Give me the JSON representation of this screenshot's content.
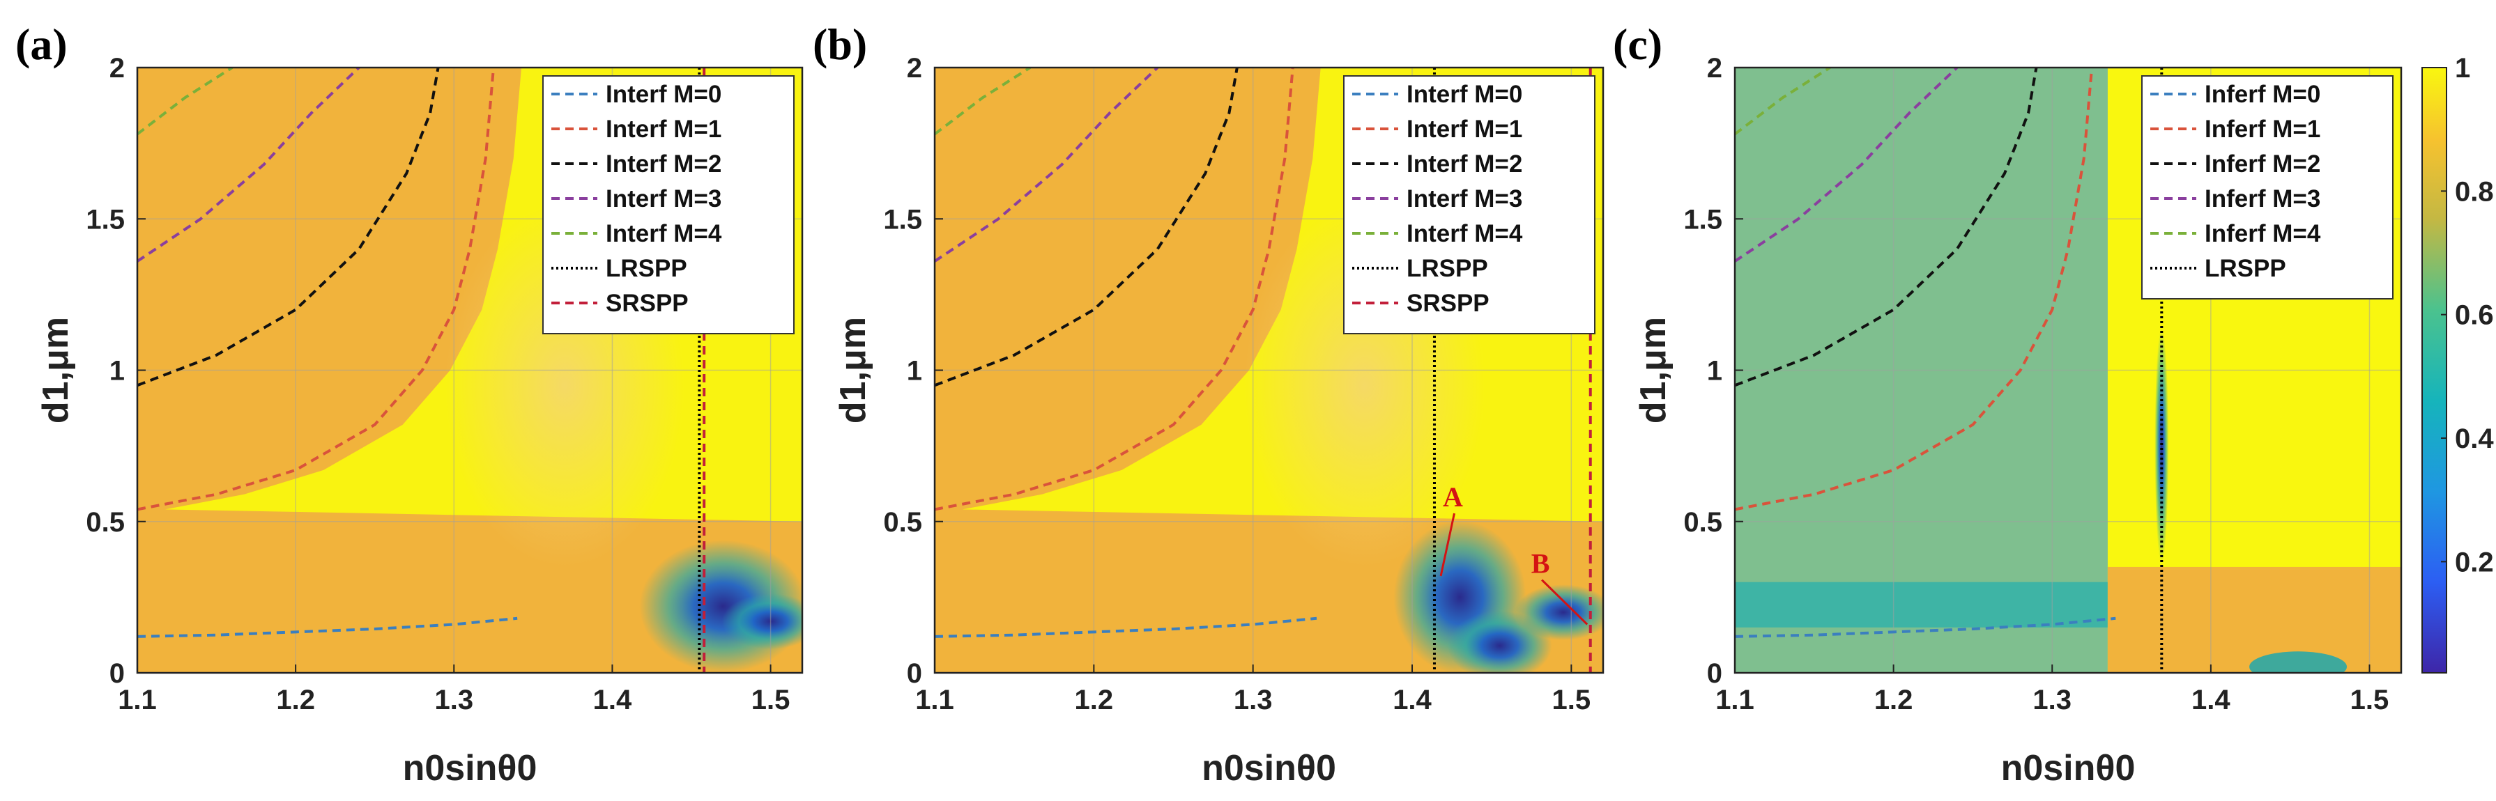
{
  "chart_data": [
    {
      "type": "heatmap",
      "panel_label": "(a)",
      "xlabel": "n0sinθ0",
      "ylabel": "d1,μm",
      "xlim": [
        1.1,
        1.52
      ],
      "ylim": [
        0,
        2
      ],
      "xticks": [
        "1.1",
        "1.2",
        "1.3",
        "1.4",
        "1.5"
      ],
      "yticks": [
        "0",
        "0.5",
        "1",
        "1.5",
        "2"
      ],
      "grid": true,
      "legend_position": "top-right",
      "legend": [
        "Interf M=0",
        "Interf M=1",
        "Interf M=2",
        "Interf M=3",
        "Interf M=4",
        "LRSPP",
        "SRSPP"
      ],
      "lrspp_x": 1.455,
      "srspp_x": 1.458,
      "series": [
        {
          "name": "Interf M=0",
          "color": "#3b7fbf",
          "x": [
            1.1,
            1.15,
            1.2,
            1.25,
            1.3,
            1.34
          ],
          "y": [
            0.12,
            0.125,
            0.135,
            0.145,
            0.16,
            0.18
          ]
        },
        {
          "name": "Interf M=1",
          "color": "#d9533b",
          "x": [
            1.1,
            1.15,
            1.2,
            1.25,
            1.28,
            1.3,
            1.31,
            1.32,
            1.325
          ],
          "y": [
            0.54,
            0.59,
            0.67,
            0.82,
            1.0,
            1.2,
            1.4,
            1.7,
            2.0
          ]
        },
        {
          "name": "Interf M=2",
          "color": "#111111",
          "x": [
            1.1,
            1.15,
            1.2,
            1.24,
            1.27,
            1.285,
            1.29
          ],
          "y": [
            0.95,
            1.05,
            1.2,
            1.4,
            1.65,
            1.85,
            2.0
          ]
        },
        {
          "name": "Interf M=3",
          "color": "#8a3f9e",
          "x": [
            1.1,
            1.14,
            1.18,
            1.21,
            1.24
          ],
          "y": [
            1.36,
            1.5,
            1.68,
            1.85,
            2.0
          ]
        },
        {
          "name": "Interf M=4",
          "color": "#7ab03a",
          "x": [
            1.1,
            1.13,
            1.16
          ],
          "y": [
            1.78,
            1.9,
            2.0
          ]
        }
      ]
    },
    {
      "type": "heatmap",
      "panel_label": "(b)",
      "xlabel": "n0sinθ0",
      "ylabel": "d1,μm",
      "xlim": [
        1.1,
        1.52
      ],
      "ylim": [
        0,
        2
      ],
      "xticks": [
        "1.1",
        "1.2",
        "1.3",
        "1.4",
        "1.5"
      ],
      "yticks": [
        "0",
        "0.5",
        "1",
        "1.5",
        "2"
      ],
      "grid": true,
      "legend_position": "top-right",
      "legend": [
        "Interf M=0",
        "Interf M=1",
        "Interf M=2",
        "Interf M=3",
        "Interf M=4",
        "LRSPP",
        "SRSPP"
      ],
      "lrspp_x": 1.414,
      "srspp_x": 1.512,
      "annotations": [
        {
          "text": "A",
          "x": 1.43,
          "y": 0.55,
          "to_x": 1.418,
          "to_y": 0.32
        },
        {
          "text": "B",
          "x": 1.485,
          "y": 0.33,
          "to_x": 1.51,
          "to_y": 0.16
        }
      ],
      "series": [
        {
          "name": "Interf M=0",
          "color": "#3b7fbf",
          "x": [
            1.1,
            1.15,
            1.2,
            1.25,
            1.3,
            1.34
          ],
          "y": [
            0.12,
            0.125,
            0.135,
            0.145,
            0.16,
            0.18
          ]
        },
        {
          "name": "Interf M=1",
          "color": "#d9533b",
          "x": [
            1.1,
            1.15,
            1.2,
            1.25,
            1.28,
            1.3,
            1.31,
            1.32,
            1.325
          ],
          "y": [
            0.54,
            0.59,
            0.67,
            0.82,
            1.0,
            1.2,
            1.4,
            1.7,
            2.0
          ]
        },
        {
          "name": "Interf M=2",
          "color": "#111111",
          "x": [
            1.1,
            1.15,
            1.2,
            1.24,
            1.27,
            1.285,
            1.29
          ],
          "y": [
            0.95,
            1.05,
            1.2,
            1.4,
            1.65,
            1.85,
            2.0
          ]
        },
        {
          "name": "Interf M=3",
          "color": "#8a3f9e",
          "x": [
            1.1,
            1.14,
            1.18,
            1.21,
            1.24
          ],
          "y": [
            1.36,
            1.5,
            1.68,
            1.85,
            2.0
          ]
        },
        {
          "name": "Interf M=4",
          "color": "#7ab03a",
          "x": [
            1.1,
            1.13,
            1.16
          ],
          "y": [
            1.78,
            1.9,
            2.0
          ]
        }
      ]
    },
    {
      "type": "heatmap",
      "panel_label": "(c)",
      "xlabel": "n0sinθ0",
      "ylabel": "d1,μm",
      "xlim": [
        1.1,
        1.52
      ],
      "ylim": [
        0,
        2
      ],
      "xticks": [
        "1.1",
        "1.2",
        "1.3",
        "1.4",
        "1.5"
      ],
      "yticks": [
        "0",
        "0.5",
        "1",
        "1.5",
        "2"
      ],
      "grid": true,
      "legend_position": "top-right",
      "legend": [
        "Inferf M=0",
        "Inferf M=1",
        "Inferf M=2",
        "Inferf M=3",
        "Inferf M=4",
        "LRSPP"
      ],
      "lrspp_x": 1.369,
      "colorbar": {
        "ticks": [
          "0.2",
          "0.4",
          "0.6",
          "0.8",
          "1"
        ],
        "range": [
          0.02,
          1
        ]
      },
      "series": [
        {
          "name": "Inferf M=0",
          "color": "#3b7fbf",
          "x": [
            1.1,
            1.15,
            1.2,
            1.25,
            1.3,
            1.34
          ],
          "y": [
            0.12,
            0.125,
            0.135,
            0.145,
            0.16,
            0.18
          ]
        },
        {
          "name": "Inferf M=1",
          "color": "#d9533b",
          "x": [
            1.1,
            1.15,
            1.2,
            1.25,
            1.28,
            1.3,
            1.31,
            1.32,
            1.325
          ],
          "y": [
            0.54,
            0.59,
            0.67,
            0.82,
            1.0,
            1.2,
            1.4,
            1.7,
            2.0
          ]
        },
        {
          "name": "Inferf M=2",
          "color": "#111111",
          "x": [
            1.1,
            1.15,
            1.2,
            1.24,
            1.27,
            1.285,
            1.29
          ],
          "y": [
            0.95,
            1.05,
            1.2,
            1.4,
            1.65,
            1.85,
            2.0
          ]
        },
        {
          "name": "Inferf M=3",
          "color": "#8a3f9e",
          "x": [
            1.1,
            1.14,
            1.18,
            1.21,
            1.24
          ],
          "y": [
            1.36,
            1.5,
            1.68,
            1.85,
            2.0
          ]
        },
        {
          "name": "Inferf M=4",
          "color": "#7ab03a",
          "x": [
            1.1,
            1.13,
            1.16
          ],
          "y": [
            1.78,
            1.9,
            2.0
          ]
        }
      ]
    }
  ],
  "colors": {
    "colormap_high": "#f9f70f",
    "colormap_mid": "#f1b33c",
    "colormap_teal": "#2aa7a6",
    "colormap_low": "#2a2a8c",
    "lrspp_line": "#000000",
    "srspp_line": "#c21f3a",
    "annotation": "#d41313"
  }
}
